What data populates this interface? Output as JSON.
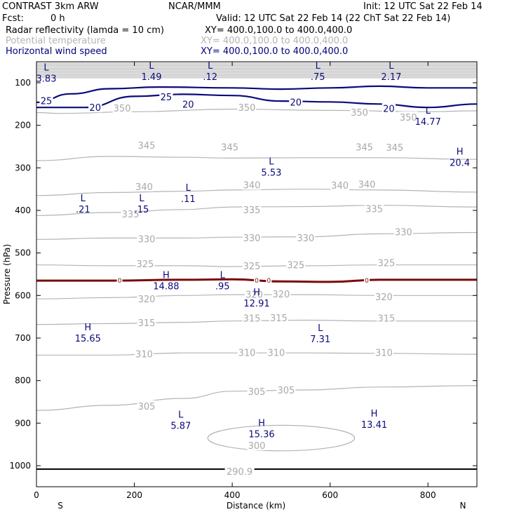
{
  "header": {
    "model": "CONTRAST   3km ARW",
    "org": "NCAR/MMM",
    "init": "Init: 12 UTC Sat 22 Feb 14",
    "fcst_label": "Fcst:",
    "fcst_value": "0 h",
    "valid": "Valid: 12 UTC Sat 22 Feb 14 (22 ChT Sat 22 Feb 14)",
    "fields": [
      {
        "name": "Radar reflectivity (lamda = 10 cm)",
        "xy": "XY= 400.0,100.0 to 400.0,400.0",
        "color": "#000000"
      },
      {
        "name": "Potential temperature",
        "xy": "XY= 400.0,100.0 to 400.0,400.0",
        "color": "#b4b4b4"
      },
      {
        "name": "Horizontal wind speed",
        "xy": "XY= 400.0,100.0 to 400.0,400.0",
        "color": "#00007a"
      }
    ]
  },
  "chart_data": {
    "type": "contour",
    "xlabel": "Distance (km)",
    "ylabel": "Pressure (hPa)",
    "xlim": [
      0,
      900
    ],
    "ylim_hpa": [
      1050,
      50
    ],
    "x_ticks": [
      0,
      200,
      400,
      600,
      800
    ],
    "x_tick_labels": [
      "0",
      "200",
      "400",
      "600",
      "800"
    ],
    "y_ticks": [
      100,
      200,
      300,
      400,
      500,
      600,
      700,
      800,
      900,
      1000
    ],
    "y_tick_labels": [
      "100",
      "200",
      "300",
      "400",
      "500",
      "600",
      "700",
      "800",
      "900",
      "1000"
    ],
    "end_labels": {
      "left": "S",
      "right": "N"
    },
    "colors": {
      "theta": "#b4b4b4",
      "wind": "#0a0a7a",
      "reflectivity": "#7a0a0a",
      "surface": "#000000"
    },
    "theta_contours": [
      {
        "label": "350",
        "points": [
          [
            0,
            170
          ],
          [
            50,
            172
          ],
          [
            200,
            168
          ],
          [
            400,
            162
          ],
          [
            600,
            165
          ],
          [
            800,
            168
          ],
          [
            900,
            166
          ]
        ],
        "labels": [
          [
            175,
            159
          ],
          [
            430,
            158
          ],
          [
            660,
            169
          ],
          [
            760,
            181
          ]
        ]
      },
      {
        "label": "345",
        "points": [
          [
            0,
            283
          ],
          [
            150,
            273
          ],
          [
            300,
            275
          ],
          [
            400,
            277
          ],
          [
            550,
            276
          ],
          [
            700,
            276
          ],
          [
            900,
            280
          ]
        ],
        "labels": [
          [
            225,
            247
          ],
          [
            395,
            251
          ],
          [
            670,
            251
          ],
          [
            732,
            252
          ]
        ]
      },
      {
        "label": "340",
        "points": [
          [
            0,
            365
          ],
          [
            150,
            358
          ],
          [
            300,
            355
          ],
          [
            400,
            352
          ],
          [
            550,
            350
          ],
          [
            700,
            352
          ],
          [
            900,
            357
          ]
        ],
        "labels": [
          [
            220,
            344
          ],
          [
            440,
            340
          ],
          [
            620,
            341
          ],
          [
            675,
            338
          ]
        ]
      },
      {
        "label": "335",
        "points": [
          [
            0,
            412
          ],
          [
            150,
            405
          ],
          [
            300,
            398
          ],
          [
            400,
            392
          ],
          [
            550,
            391
          ],
          [
            700,
            388
          ],
          [
            900,
            392
          ]
        ],
        "labels": [
          [
            192,
            408
          ],
          [
            440,
            398
          ],
          [
            690,
            396
          ]
        ]
      },
      {
        "label": "330",
        "points": [
          [
            0,
            468
          ],
          [
            150,
            465
          ],
          [
            300,
            465
          ],
          [
            400,
            463
          ],
          [
            550,
            462
          ],
          [
            700,
            455
          ],
          [
            900,
            452
          ]
        ],
        "labels": [
          [
            225,
            467
          ],
          [
            440,
            464
          ],
          [
            550,
            464
          ],
          [
            750,
            450
          ]
        ]
      },
      {
        "label": "325",
        "points": [
          [
            0,
            528
          ],
          [
            150,
            530
          ],
          [
            300,
            530
          ],
          [
            400,
            532
          ],
          [
            550,
            530
          ],
          [
            700,
            528
          ],
          [
            900,
            528
          ]
        ],
        "labels": [
          [
            222,
            525
          ],
          [
            440,
            530
          ],
          [
            530,
            528
          ],
          [
            715,
            523
          ]
        ]
      },
      {
        "label": "320",
        "points": [
          [
            0,
            608
          ],
          [
            150,
            605
          ],
          [
            300,
            600
          ],
          [
            400,
            598
          ],
          [
            550,
            598
          ],
          [
            700,
            600
          ],
          [
            900,
            600
          ]
        ],
        "labels": [
          [
            225,
            608
          ],
          [
            445,
            597
          ],
          [
            500,
            596
          ],
          [
            710,
            603
          ]
        ]
      },
      {
        "label": "315",
        "points": [
          [
            0,
            668
          ],
          [
            150,
            666
          ],
          [
            300,
            663
          ],
          [
            400,
            660
          ],
          [
            550,
            658
          ],
          [
            700,
            660
          ],
          [
            900,
            660
          ]
        ],
        "labels": [
          [
            225,
            664
          ],
          [
            440,
            653
          ],
          [
            495,
            652
          ],
          [
            715,
            653
          ]
        ]
      },
      {
        "label": "310",
        "points": [
          [
            0,
            740
          ],
          [
            150,
            740
          ],
          [
            300,
            735
          ],
          [
            400,
            735
          ],
          [
            550,
            735
          ],
          [
            700,
            736
          ],
          [
            900,
            738
          ]
        ],
        "labels": [
          [
            220,
            737
          ],
          [
            430,
            734
          ],
          [
            490,
            734
          ],
          [
            710,
            734
          ]
        ]
      },
      {
        "label": "305",
        "points": [
          [
            0,
            870
          ],
          [
            150,
            858
          ],
          [
            300,
            842
          ],
          [
            400,
            825
          ],
          [
            550,
            822
          ],
          [
            700,
            815
          ],
          [
            900,
            812
          ]
        ],
        "labels": [
          [
            225,
            860
          ],
          [
            450,
            825
          ],
          [
            510,
            822
          ]
        ]
      }
    ],
    "theta_closed": [
      {
        "label": "300",
        "center": [
          500,
          935
        ],
        "rx": 150,
        "ry": 30,
        "labels": [
          [
            450,
            952
          ]
        ]
      },
      {
        "label": "290.9",
        "center": [
          420,
          990
        ],
        "rx": 0,
        "ry": 0,
        "labels": [
          [
            415,
            1013
          ]
        ]
      }
    ],
    "wind_contours": [
      {
        "label": "20",
        "points": [
          [
            0,
            158
          ],
          [
            100,
            158
          ],
          [
            200,
            132
          ],
          [
            300,
            127
          ],
          [
            400,
            130
          ],
          [
            500,
            143
          ],
          [
            600,
            145
          ],
          [
            700,
            150
          ],
          [
            800,
            158
          ],
          [
            900,
            150
          ]
        ],
        "labels": [
          [
            120,
            158
          ],
          [
            310,
            150
          ],
          [
            530,
            145
          ],
          [
            720,
            160
          ]
        ]
      },
      {
        "label": "25",
        "points": [
          [
            0,
            146
          ],
          [
            70,
            126
          ],
          [
            150,
            114
          ],
          [
            250,
            110
          ],
          [
            400,
            112
          ],
          [
            500,
            115
          ],
          [
            600,
            112
          ],
          [
            700,
            108
          ],
          [
            800,
            112
          ],
          [
            900,
            112
          ]
        ],
        "labels": [
          [
            20,
            142
          ],
          [
            265,
            133
          ]
        ]
      }
    ],
    "reflectivity_contours": [
      {
        "label": "0",
        "points": [
          [
            0,
            565
          ],
          [
            150,
            565
          ],
          [
            300,
            563
          ],
          [
            400,
            562
          ],
          [
            500,
            567
          ],
          [
            600,
            568
          ],
          [
            700,
            563
          ],
          [
            900,
            563
          ]
        ],
        "labels": [
          [
            170,
            565
          ],
          [
            450,
            565
          ],
          [
            475,
            565
          ],
          [
            675,
            565
          ]
        ]
      }
    ],
    "extrema": [
      {
        "type": "L",
        "value": "3.83",
        "x": 20,
        "p": 84
      },
      {
        "type": "L",
        "value": "1.49",
        "x": 235,
        "p": 80
      },
      {
        "type": "L",
        "value": ".12",
        "x": 355,
        "p": 80
      },
      {
        "type": "L",
        "value": ".75",
        "x": 575,
        "p": 80
      },
      {
        "type": "L",
        "value": "2.17",
        "x": 725,
        "p": 80
      },
      {
        "type": "L",
        "value": "14.77",
        "x": 800,
        "p": 186
      },
      {
        "type": "H",
        "value": "20.4",
        "x": 865,
        "p": 282
      },
      {
        "type": "L",
        "value": "5.53",
        "x": 480,
        "p": 305
      },
      {
        "type": "L",
        "value": ".11",
        "x": 310,
        "p": 367
      },
      {
        "type": "L",
        "value": ".21",
        "x": 95,
        "p": 392
      },
      {
        "type": "L",
        "value": ".15",
        "x": 215,
        "p": 392
      },
      {
        "type": "H",
        "value": "14.88",
        "x": 265,
        "p": 572
      },
      {
        "type": "L",
        "value": ".95",
        "x": 380,
        "p": 572
      },
      {
        "type": "H",
        "value": "12.91",
        "x": 450,
        "p": 613
      },
      {
        "type": "H",
        "value": "15.65",
        "x": 105,
        "p": 695
      },
      {
        "type": "L",
        "value": "7.31",
        "x": 580,
        "p": 697
      },
      {
        "type": "L",
        "value": "5.87",
        "x": 295,
        "p": 900
      },
      {
        "type": "H",
        "value": "15.36",
        "x": 460,
        "p": 920
      },
      {
        "type": "H",
        "value": "13.41",
        "x": 690,
        "p": 898
      }
    ],
    "surface_line_p": 1008
  }
}
